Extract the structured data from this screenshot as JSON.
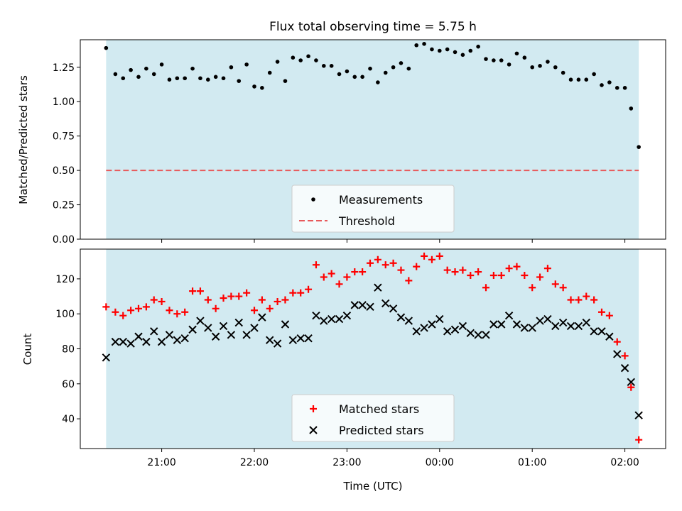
{
  "chart_data": [
    {
      "type": "scatter",
      "title": "Flux total observing time = 5.75 h",
      "ylabel": "Matched/Predicted stars",
      "xlabel": "",
      "ylim": [
        0,
        1.45
      ],
      "yticks": [
        "0.00",
        "0.25",
        "0.50",
        "0.75",
        "1.00",
        "1.25"
      ],
      "x_axis": "time (UTC)",
      "shaded_span": [
        "20:24",
        "02:09"
      ],
      "shade_color": "#add8e6",
      "threshold": 0.5,
      "threshold_color": "#e8595b",
      "legend_placement": "lower center",
      "legend": [
        "Measurements",
        "Threshold"
      ],
      "grid": false,
      "series": [
        {
          "name": "Measurements",
          "marker": "dot",
          "color": "#000000",
          "x": [
            "20:24",
            "20:30",
            "20:35",
            "20:40",
            "20:45",
            "20:50",
            "20:55",
            "21:00",
            "21:05",
            "21:10",
            "21:15",
            "21:20",
            "21:25",
            "21:30",
            "21:35",
            "21:40",
            "21:45",
            "21:50",
            "21:55",
            "22:00",
            "22:05",
            "22:10",
            "22:15",
            "22:20",
            "22:25",
            "22:30",
            "22:35",
            "22:40",
            "22:45",
            "22:50",
            "22:55",
            "23:00",
            "23:05",
            "23:10",
            "23:15",
            "23:20",
            "23:25",
            "23:30",
            "23:35",
            "23:40",
            "23:45",
            "23:50",
            "23:55",
            "00:00",
            "00:05",
            "00:10",
            "00:15",
            "00:20",
            "00:25",
            "00:30",
            "00:35",
            "00:40",
            "00:45",
            "00:50",
            "00:55",
            "01:00",
            "01:05",
            "01:10",
            "01:15",
            "01:20",
            "01:25",
            "01:30",
            "01:35",
            "01:40",
            "01:45",
            "01:50",
            "01:55",
            "02:00",
            "02:04",
            "02:09"
          ],
          "values": [
            1.39,
            1.2,
            1.17,
            1.23,
            1.18,
            1.24,
            1.2,
            1.27,
            1.16,
            1.17,
            1.17,
            1.24,
            1.17,
            1.16,
            1.18,
            1.17,
            1.25,
            1.15,
            1.27,
            1.11,
            1.1,
            1.21,
            1.29,
            1.15,
            1.32,
            1.3,
            1.33,
            1.3,
            1.26,
            1.26,
            1.2,
            1.22,
            1.18,
            1.18,
            1.24,
            1.14,
            1.21,
            1.25,
            1.28,
            1.24,
            1.41,
            1.42,
            1.38,
            1.37,
            1.38,
            1.36,
            1.34,
            1.37,
            1.4,
            1.31,
            1.3,
            1.3,
            1.27,
            1.35,
            1.32,
            1.25,
            1.26,
            1.29,
            1.25,
            1.21,
            1.16,
            1.16,
            1.16,
            1.2,
            1.12,
            1.14,
            1.1,
            1.1,
            0.95,
            0.67
          ]
        }
      ]
    },
    {
      "type": "scatter",
      "title": "",
      "ylabel": "Count",
      "xlabel": "Time (UTC)",
      "ylim": [
        23,
        137
      ],
      "yticks": [
        "40",
        "60",
        "80",
        "100",
        "120"
      ],
      "xticks": [
        "21:00",
        "22:00",
        "23:00",
        "00:00",
        "01:00",
        "02:00"
      ],
      "shaded_span": [
        "20:24",
        "02:09"
      ],
      "shade_color": "#add8e6",
      "legend_placement": "lower center",
      "legend": [
        "Matched stars",
        "Predicted stars"
      ],
      "grid": false,
      "series": [
        {
          "name": "Matched stars",
          "marker": "plus",
          "color": "#ff0000",
          "x": [
            "20:24",
            "20:30",
            "20:35",
            "20:40",
            "20:45",
            "20:50",
            "20:55",
            "21:00",
            "21:05",
            "21:10",
            "21:15",
            "21:20",
            "21:25",
            "21:30",
            "21:35",
            "21:40",
            "21:45",
            "21:50",
            "21:55",
            "22:00",
            "22:05",
            "22:10",
            "22:15",
            "22:20",
            "22:25",
            "22:30",
            "22:35",
            "22:40",
            "22:45",
            "22:50",
            "22:55",
            "23:00",
            "23:05",
            "23:10",
            "23:15",
            "23:20",
            "23:25",
            "23:30",
            "23:35",
            "23:40",
            "23:45",
            "23:50",
            "23:55",
            "00:00",
            "00:05",
            "00:10",
            "00:15",
            "00:20",
            "00:25",
            "00:30",
            "00:35",
            "00:40",
            "00:45",
            "00:50",
            "00:55",
            "01:00",
            "01:05",
            "01:10",
            "01:15",
            "01:20",
            "01:25",
            "01:30",
            "01:35",
            "01:40",
            "01:45",
            "01:50",
            "01:55",
            "02:00",
            "02:04",
            "02:09"
          ],
          "values": [
            104,
            101,
            99,
            102,
            103,
            104,
            108,
            107,
            102,
            100,
            101,
            113,
            113,
            108,
            103,
            109,
            110,
            110,
            112,
            102,
            108,
            103,
            107,
            108,
            112,
            112,
            114,
            128,
            121,
            123,
            117,
            121,
            124,
            124,
            129,
            131,
            128,
            129,
            125,
            119,
            127,
            133,
            131,
            133,
            125,
            124,
            125,
            122,
            124,
            115,
            122,
            122,
            126,
            127,
            122,
            115,
            121,
            126,
            117,
            115,
            108,
            108,
            110,
            108,
            101,
            99,
            84,
            76,
            58,
            28
          ]
        },
        {
          "name": "Predicted stars",
          "marker": "x",
          "color": "#000000",
          "x": [
            "20:24",
            "20:30",
            "20:35",
            "20:40",
            "20:45",
            "20:50",
            "20:55",
            "21:00",
            "21:05",
            "21:10",
            "21:15",
            "21:20",
            "21:25",
            "21:30",
            "21:35",
            "21:40",
            "21:45",
            "21:50",
            "21:55",
            "22:00",
            "22:05",
            "22:10",
            "22:15",
            "22:20",
            "22:25",
            "22:30",
            "22:35",
            "22:40",
            "22:45",
            "22:50",
            "22:55",
            "23:00",
            "23:05",
            "23:10",
            "23:15",
            "23:20",
            "23:25",
            "23:30",
            "23:35",
            "23:40",
            "23:45",
            "23:50",
            "23:55",
            "00:00",
            "00:05",
            "00:10",
            "00:15",
            "00:20",
            "00:25",
            "00:30",
            "00:35",
            "00:40",
            "00:45",
            "00:50",
            "00:55",
            "01:00",
            "01:05",
            "01:10",
            "01:15",
            "01:20",
            "01:25",
            "01:30",
            "01:35",
            "01:40",
            "01:45",
            "01:50",
            "01:55",
            "02:00",
            "02:04",
            "02:09"
          ],
          "values": [
            75,
            84,
            84,
            83,
            87,
            84,
            90,
            84,
            88,
            85,
            86,
            91,
            96,
            92,
            87,
            93,
            88,
            95,
            88,
            92,
            98,
            85,
            83,
            94,
            85,
            86,
            86,
            99,
            96,
            97,
            97,
            99,
            105,
            105,
            104,
            115,
            106,
            103,
            98,
            96,
            90,
            92,
            94,
            97,
            90,
            91,
            93,
            89,
            88,
            88,
            94,
            94,
            99,
            94,
            92,
            92,
            96,
            97,
            93,
            95,
            93,
            93,
            95,
            90,
            90,
            87,
            77,
            69,
            61,
            42
          ]
        }
      ]
    }
  ]
}
